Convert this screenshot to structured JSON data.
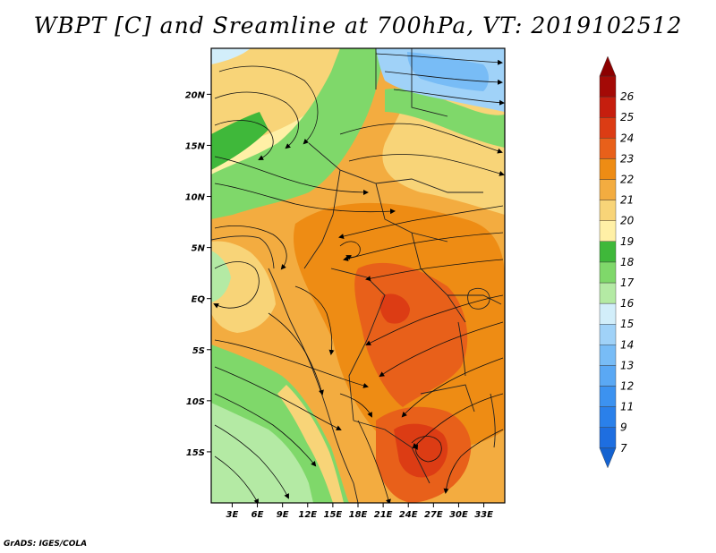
{
  "title": "WBPT [C] and Sreamline at 700hPa, VT: 2019102512",
  "credit": "GrADS: IGES/COLA",
  "map": {
    "lat_labels": [
      "20N",
      "15N",
      "10N",
      "5N",
      "EQ",
      "5S",
      "10S",
      "15S"
    ],
    "lat_values": [
      20,
      15,
      10,
      5,
      0,
      -5,
      -10,
      -15
    ],
    "lon_labels": [
      "3E",
      "6E",
      "9E",
      "12E",
      "15E",
      "18E",
      "21E",
      "24E",
      "27E",
      "30E",
      "33E"
    ],
    "lon_values": [
      3,
      6,
      9,
      12,
      15,
      18,
      21,
      24,
      27,
      30,
      33
    ],
    "lat_range": [
      -20,
      24.5
    ],
    "lon_range": [
      0.5,
      35.5
    ]
  },
  "colorbar": {
    "labels": [
      "7",
      "9",
      "11",
      "12",
      "13",
      "14",
      "15",
      "16",
      "17",
      "18",
      "19",
      "20",
      "21",
      "22",
      "23",
      "24",
      "25",
      "26"
    ],
    "colors": [
      "#1e6ee0",
      "#2a80ea",
      "#3c92f0",
      "#5aa8f4",
      "#78bcf6",
      "#a0d2f8",
      "#d2eefa",
      "#b4eaa4",
      "#7fd86a",
      "#3fb83a",
      "#fff0a6",
      "#f8d478",
      "#f3ac40",
      "#ee8c14",
      "#e8601a",
      "#dc3c14",
      "#c61e0e",
      "#a40a06"
    ],
    "low_arrow_color": "#1462d0",
    "high_arrow_color": "#8c0000"
  }
}
